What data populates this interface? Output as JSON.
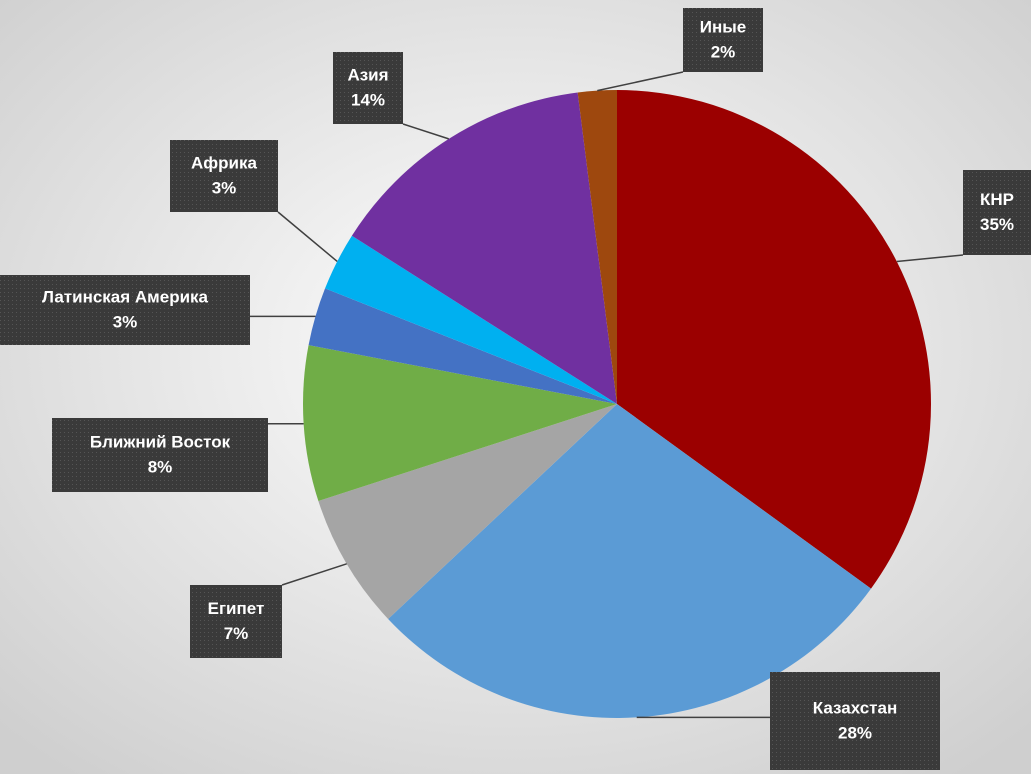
{
  "chart_data": {
    "type": "pie",
    "categories": [
      "КНР",
      "Казахстан",
      "Египет",
      "Ближний Восток",
      "Латинская Америка",
      "Африка",
      "Азия",
      "Иные"
    ],
    "values": [
      35,
      28,
      7,
      8,
      3,
      3,
      14,
      2
    ],
    "value_labels": [
      "35%",
      "28%",
      "7%",
      "8%",
      "3%",
      "3%",
      "14%",
      "2%"
    ],
    "colors": [
      "#9b0000",
      "#5b9bd5",
      "#a5a5a5",
      "#70ad47",
      "#4472c4",
      "#00b0f0",
      "#7030a0",
      "#9e480e"
    ]
  }
}
